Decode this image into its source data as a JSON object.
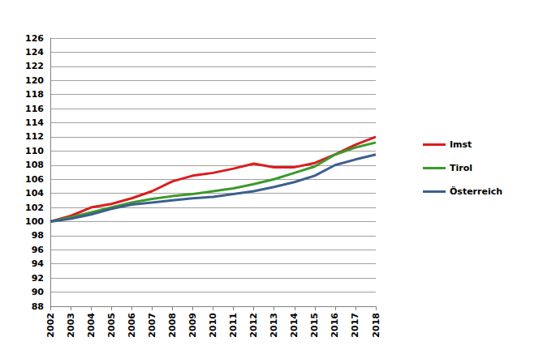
{
  "chart_data": {
    "type": "line",
    "categories": [
      "2002",
      "2003",
      "2004",
      "2005",
      "2006",
      "2007",
      "2008",
      "2009",
      "2010",
      "2011",
      "2012",
      "2013",
      "2014",
      "2015",
      "2016",
      "2017",
      "2018"
    ],
    "series": [
      {
        "name": "Imst",
        "color": "#dd1c1c",
        "values": [
          100,
          100.8,
          102.0,
          102.5,
          103.3,
          104.3,
          105.7,
          106.5,
          106.9,
          107.5,
          108.2,
          107.7,
          107.7,
          108.3,
          109.5,
          110.9,
          112.0
        ]
      },
      {
        "name": "Tirol",
        "color": "#3a9a2a",
        "values": [
          100,
          100.6,
          101.3,
          102.0,
          102.7,
          103.2,
          103.6,
          103.9,
          104.3,
          104.7,
          105.3,
          106.0,
          106.9,
          107.8,
          109.5,
          110.5,
          111.2
        ]
      },
      {
        "name": "Österreich",
        "color": "#3c5f8f",
        "values": [
          100,
          100.4,
          101.0,
          101.8,
          102.4,
          102.7,
          103.0,
          103.3,
          103.5,
          103.9,
          104.3,
          104.9,
          105.6,
          106.5,
          108.0,
          108.8,
          109.5
        ]
      }
    ],
    "ylim": [
      88,
      126
    ],
    "yticks": [
      88,
      90,
      92,
      94,
      96,
      98,
      100,
      102,
      104,
      106,
      108,
      110,
      112,
      114,
      116,
      118,
      120,
      122,
      124,
      126
    ],
    "grid": true,
    "legend": "right"
  }
}
